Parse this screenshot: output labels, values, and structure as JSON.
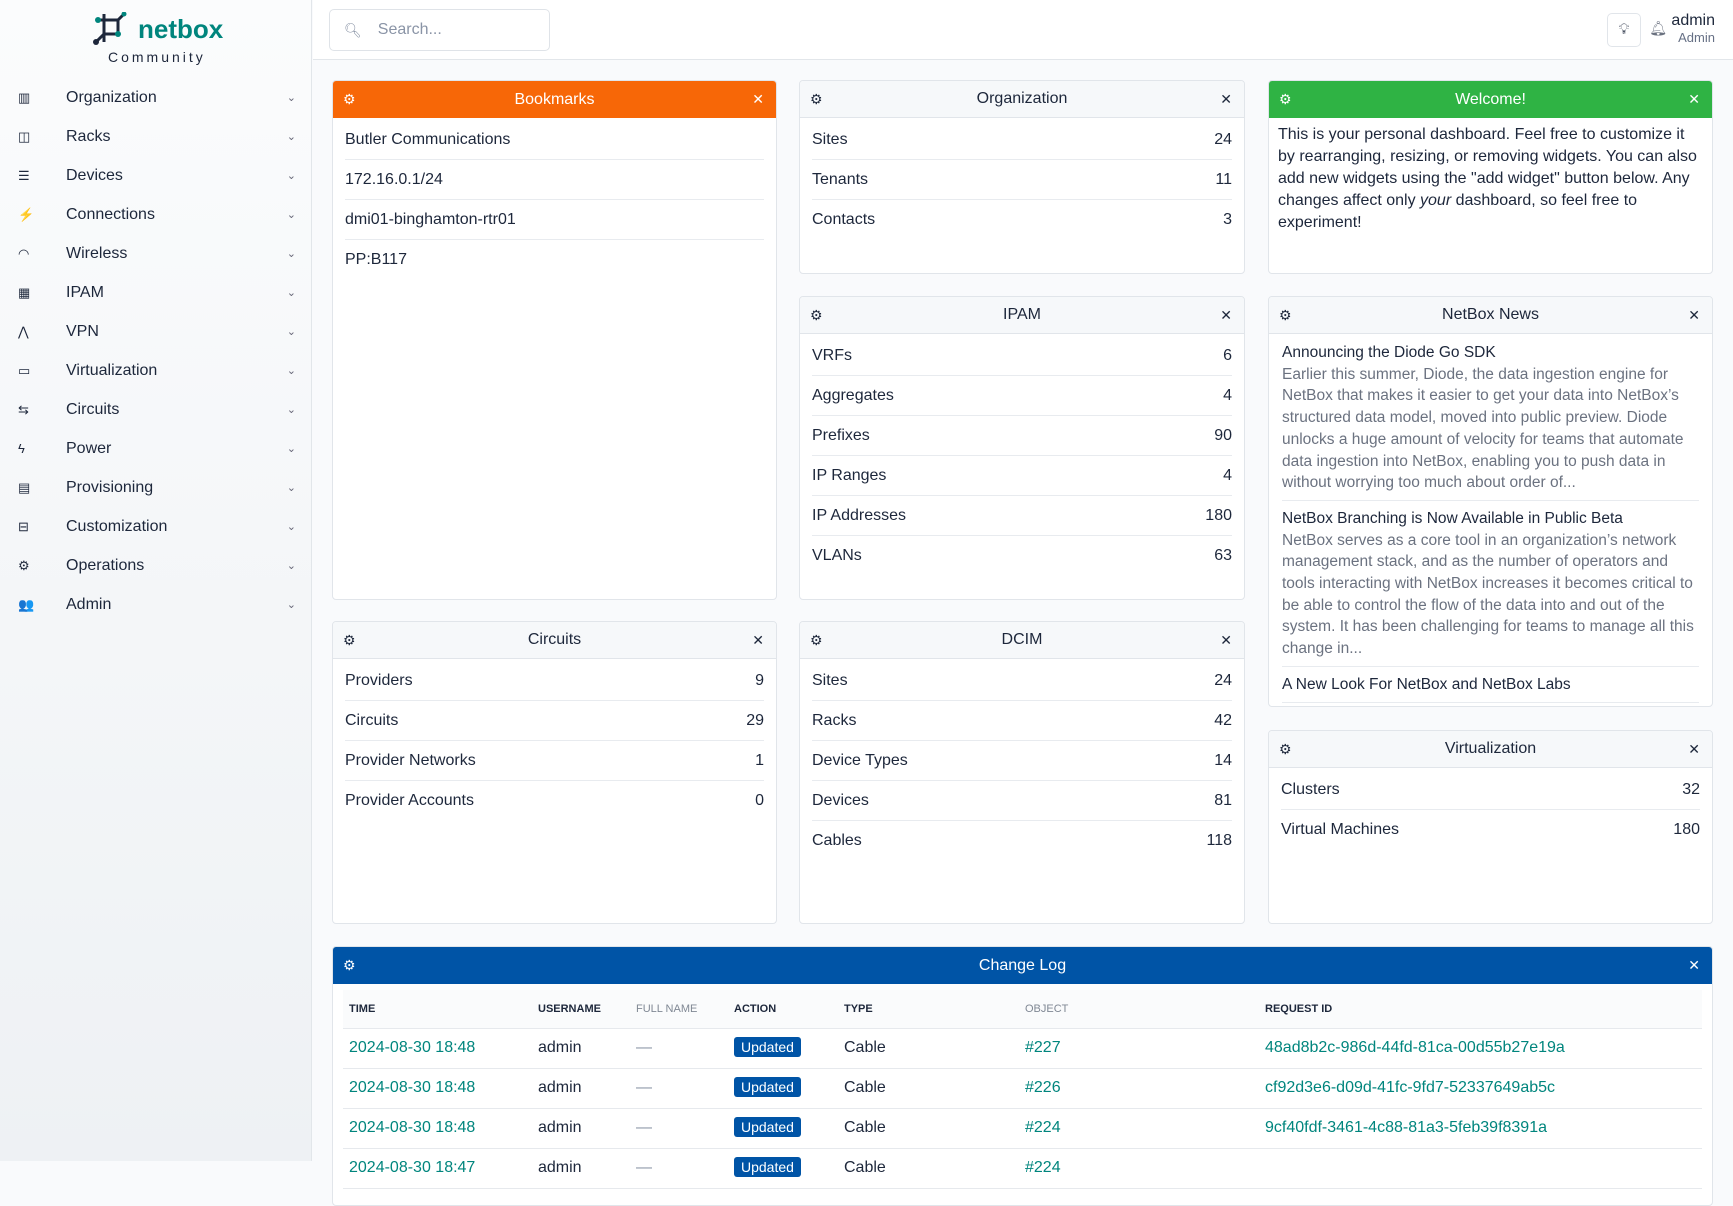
{
  "brand": {
    "name": "netbox",
    "edition": "Community"
  },
  "nav": [
    {
      "label": "Organization",
      "icon": "building-icon",
      "glyph": "▥"
    },
    {
      "label": "Racks",
      "icon": "rack-icon",
      "glyph": "◫"
    },
    {
      "label": "Devices",
      "icon": "server-icon",
      "glyph": "☰"
    },
    {
      "label": "Connections",
      "icon": "plug-icon",
      "glyph": "⚡"
    },
    {
      "label": "Wireless",
      "icon": "wifi-icon",
      "glyph": "◠"
    },
    {
      "label": "IPAM",
      "icon": "ip-icon",
      "glyph": "▦"
    },
    {
      "label": "VPN",
      "icon": "vpn-icon",
      "glyph": "⋀"
    },
    {
      "label": "Virtualization",
      "icon": "monitor-icon",
      "glyph": "▭"
    },
    {
      "label": "Circuits",
      "icon": "circuit-icon",
      "glyph": "⇆"
    },
    {
      "label": "Power",
      "icon": "bolt-icon",
      "glyph": "ϟ"
    },
    {
      "label": "Provisioning",
      "icon": "file-icon",
      "glyph": "▤"
    },
    {
      "label": "Customization",
      "icon": "toolbox-icon",
      "glyph": "⊟"
    },
    {
      "label": "Operations",
      "icon": "cogs-icon",
      "glyph": "⚙"
    },
    {
      "label": "Admin",
      "icon": "users-icon",
      "glyph": "👥"
    }
  ],
  "search": {
    "placeholder": "Search..."
  },
  "user": {
    "name": "admin",
    "role": "Admin"
  },
  "widgets": {
    "bookmarks": {
      "title": "Bookmarks",
      "color": "#f76707",
      "items": [
        "Butler Communications",
        "172.16.0.1/24",
        "dmi01-binghamton-rtr01",
        "PP:B117"
      ]
    },
    "organization": {
      "title": "Organization",
      "stats": [
        [
          "Sites",
          "24"
        ],
        [
          "Tenants",
          "11"
        ],
        [
          "Contacts",
          "3"
        ]
      ]
    },
    "welcome": {
      "title": "Welcome!",
      "color": "#2fb344",
      "text_before": "This is your personal dashboard. Feel free to customize it by rearranging, resizing, or removing widgets. You can also add new widgets using the \"add widget\" button below. Any changes affect only ",
      "text_em": "your",
      "text_after": " dashboard, so feel free to experiment!"
    },
    "ipam": {
      "title": "IPAM",
      "stats": [
        [
          "VRFs",
          "6"
        ],
        [
          "Aggregates",
          "4"
        ],
        [
          "Prefixes",
          "90"
        ],
        [
          "IP Ranges",
          "4"
        ],
        [
          "IP Addresses",
          "180"
        ],
        [
          "VLANs",
          "63"
        ]
      ]
    },
    "news": {
      "title": "NetBox News",
      "items": [
        {
          "title": "Announcing the Diode Go SDK",
          "desc": "Earlier this summer, Diode, the data ingestion engine for NetBox that makes it easier to get your data into NetBox’s structured data model, moved into public preview. Diode unlocks a huge amount of velocity for teams that automate data ingestion into NetBox, enabling you to push data in without worrying too much about order of..."
        },
        {
          "title": "NetBox Branching is Now Available in Public Beta",
          "desc": "NetBox serves as a core tool in an organization’s network management stack, and as the number of operators and tools interacting with NetBox increases it becomes critical to be able to control the flow of the data into and out of the system. It has been challenging for teams to manage all this change in..."
        },
        {
          "title": "A New Look For NetBox and NetBox Labs",
          "desc": ""
        }
      ]
    },
    "circuits": {
      "title": "Circuits",
      "stats": [
        [
          "Providers",
          "9"
        ],
        [
          "Circuits",
          "29"
        ],
        [
          "Provider Networks",
          "1"
        ],
        [
          "Provider Accounts",
          "0"
        ]
      ]
    },
    "dcim": {
      "title": "DCIM",
      "stats": [
        [
          "Sites",
          "24"
        ],
        [
          "Racks",
          "42"
        ],
        [
          "Device Types",
          "14"
        ],
        [
          "Devices",
          "81"
        ],
        [
          "Cables",
          "118"
        ]
      ]
    },
    "virtualization": {
      "title": "Virtualization",
      "stats": [
        [
          "Clusters",
          "32"
        ],
        [
          "Virtual Machines",
          "180"
        ]
      ]
    },
    "changelog": {
      "title": "Change Log",
      "color": "#0054a6",
      "columns": [
        "TIME",
        "USERNAME",
        "FULL NAME",
        "ACTION",
        "TYPE",
        "OBJECT",
        "REQUEST ID"
      ],
      "rows": [
        [
          "2024-08-30 18:48",
          "admin",
          "—",
          "Updated",
          "Cable",
          "#227",
          "48ad8b2c-986d-44fd-81ca-00d55b27e19a"
        ],
        [
          "2024-08-30 18:48",
          "admin",
          "—",
          "Updated",
          "Cable",
          "#226",
          "cf92d3e6-d09d-41fc-9fd7-52337649ab5c"
        ],
        [
          "2024-08-30 18:48",
          "admin",
          "—",
          "Updated",
          "Cable",
          "#224",
          "9cf40fdf-3461-4c88-81a3-5feb39f8391a"
        ],
        [
          "2024-08-30 18:47",
          "admin",
          "—",
          "Updated",
          "Cable",
          "#224",
          ""
        ]
      ]
    }
  }
}
